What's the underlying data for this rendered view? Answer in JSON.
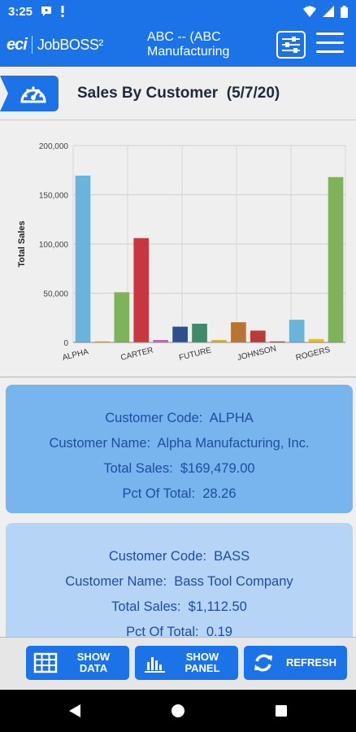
{
  "status_bar": {
    "time": "3:25"
  },
  "app_bar": {
    "logo_brand": "eci",
    "logo_product": "JobBOSS²",
    "company_line1": "ABC -- (ABC",
    "company_line2": "Manufacturing"
  },
  "page": {
    "title": "Sales By Customer",
    "date": "(5/7/20)"
  },
  "chart_data": {
    "type": "bar",
    "ylabel": "Total Sales",
    "ylim": [
      0,
      200000
    ],
    "yticks": [
      "0",
      "50,000",
      "100,000",
      "150,000",
      "200,000"
    ],
    "x_tick_labels": [
      "ALPHA",
      "CARTER",
      "FUTURE",
      "JOHNSON",
      "ROGERS"
    ],
    "values": [
      169479,
      1112,
      51000,
      106000,
      2500,
      16000,
      19000,
      2500,
      20500,
      12000,
      1000,
      23000,
      3500,
      168000
    ],
    "colors": [
      "#6ab4dc",
      "#e8b830",
      "#7fb35a",
      "#c9363f",
      "#b86bb0",
      "#2d4f8c",
      "#3f8a6a",
      "#d9b536",
      "#b87435",
      "#b83a3a",
      "#8b2a2a",
      "#6ab4dc",
      "#e8c020",
      "#7fb35a"
    ]
  },
  "cards": [
    {
      "code_label": "Customer Code:",
      "code": "ALPHA",
      "name_label": "Customer Name:",
      "name": "Alpha Manufacturing, Inc.",
      "sales_label": "Total Sales:",
      "sales": "$169,479.00",
      "pct_label": "Pct Of Total:",
      "pct": "28.26"
    },
    {
      "code_label": "Customer Code:",
      "code": "BASS",
      "name_label": "Customer Name:",
      "name": "Bass Tool Company",
      "sales_label": "Total Sales:",
      "sales": "$1,112.50",
      "pct_label": "Pct Of Total:",
      "pct": "0.19"
    }
  ],
  "bottom_bar": {
    "show_data_l1": "SHOW",
    "show_data_l2": "DATA",
    "show_panel_l1": "SHOW",
    "show_panel_l2": "PANEL",
    "refresh": "REFRESH"
  }
}
